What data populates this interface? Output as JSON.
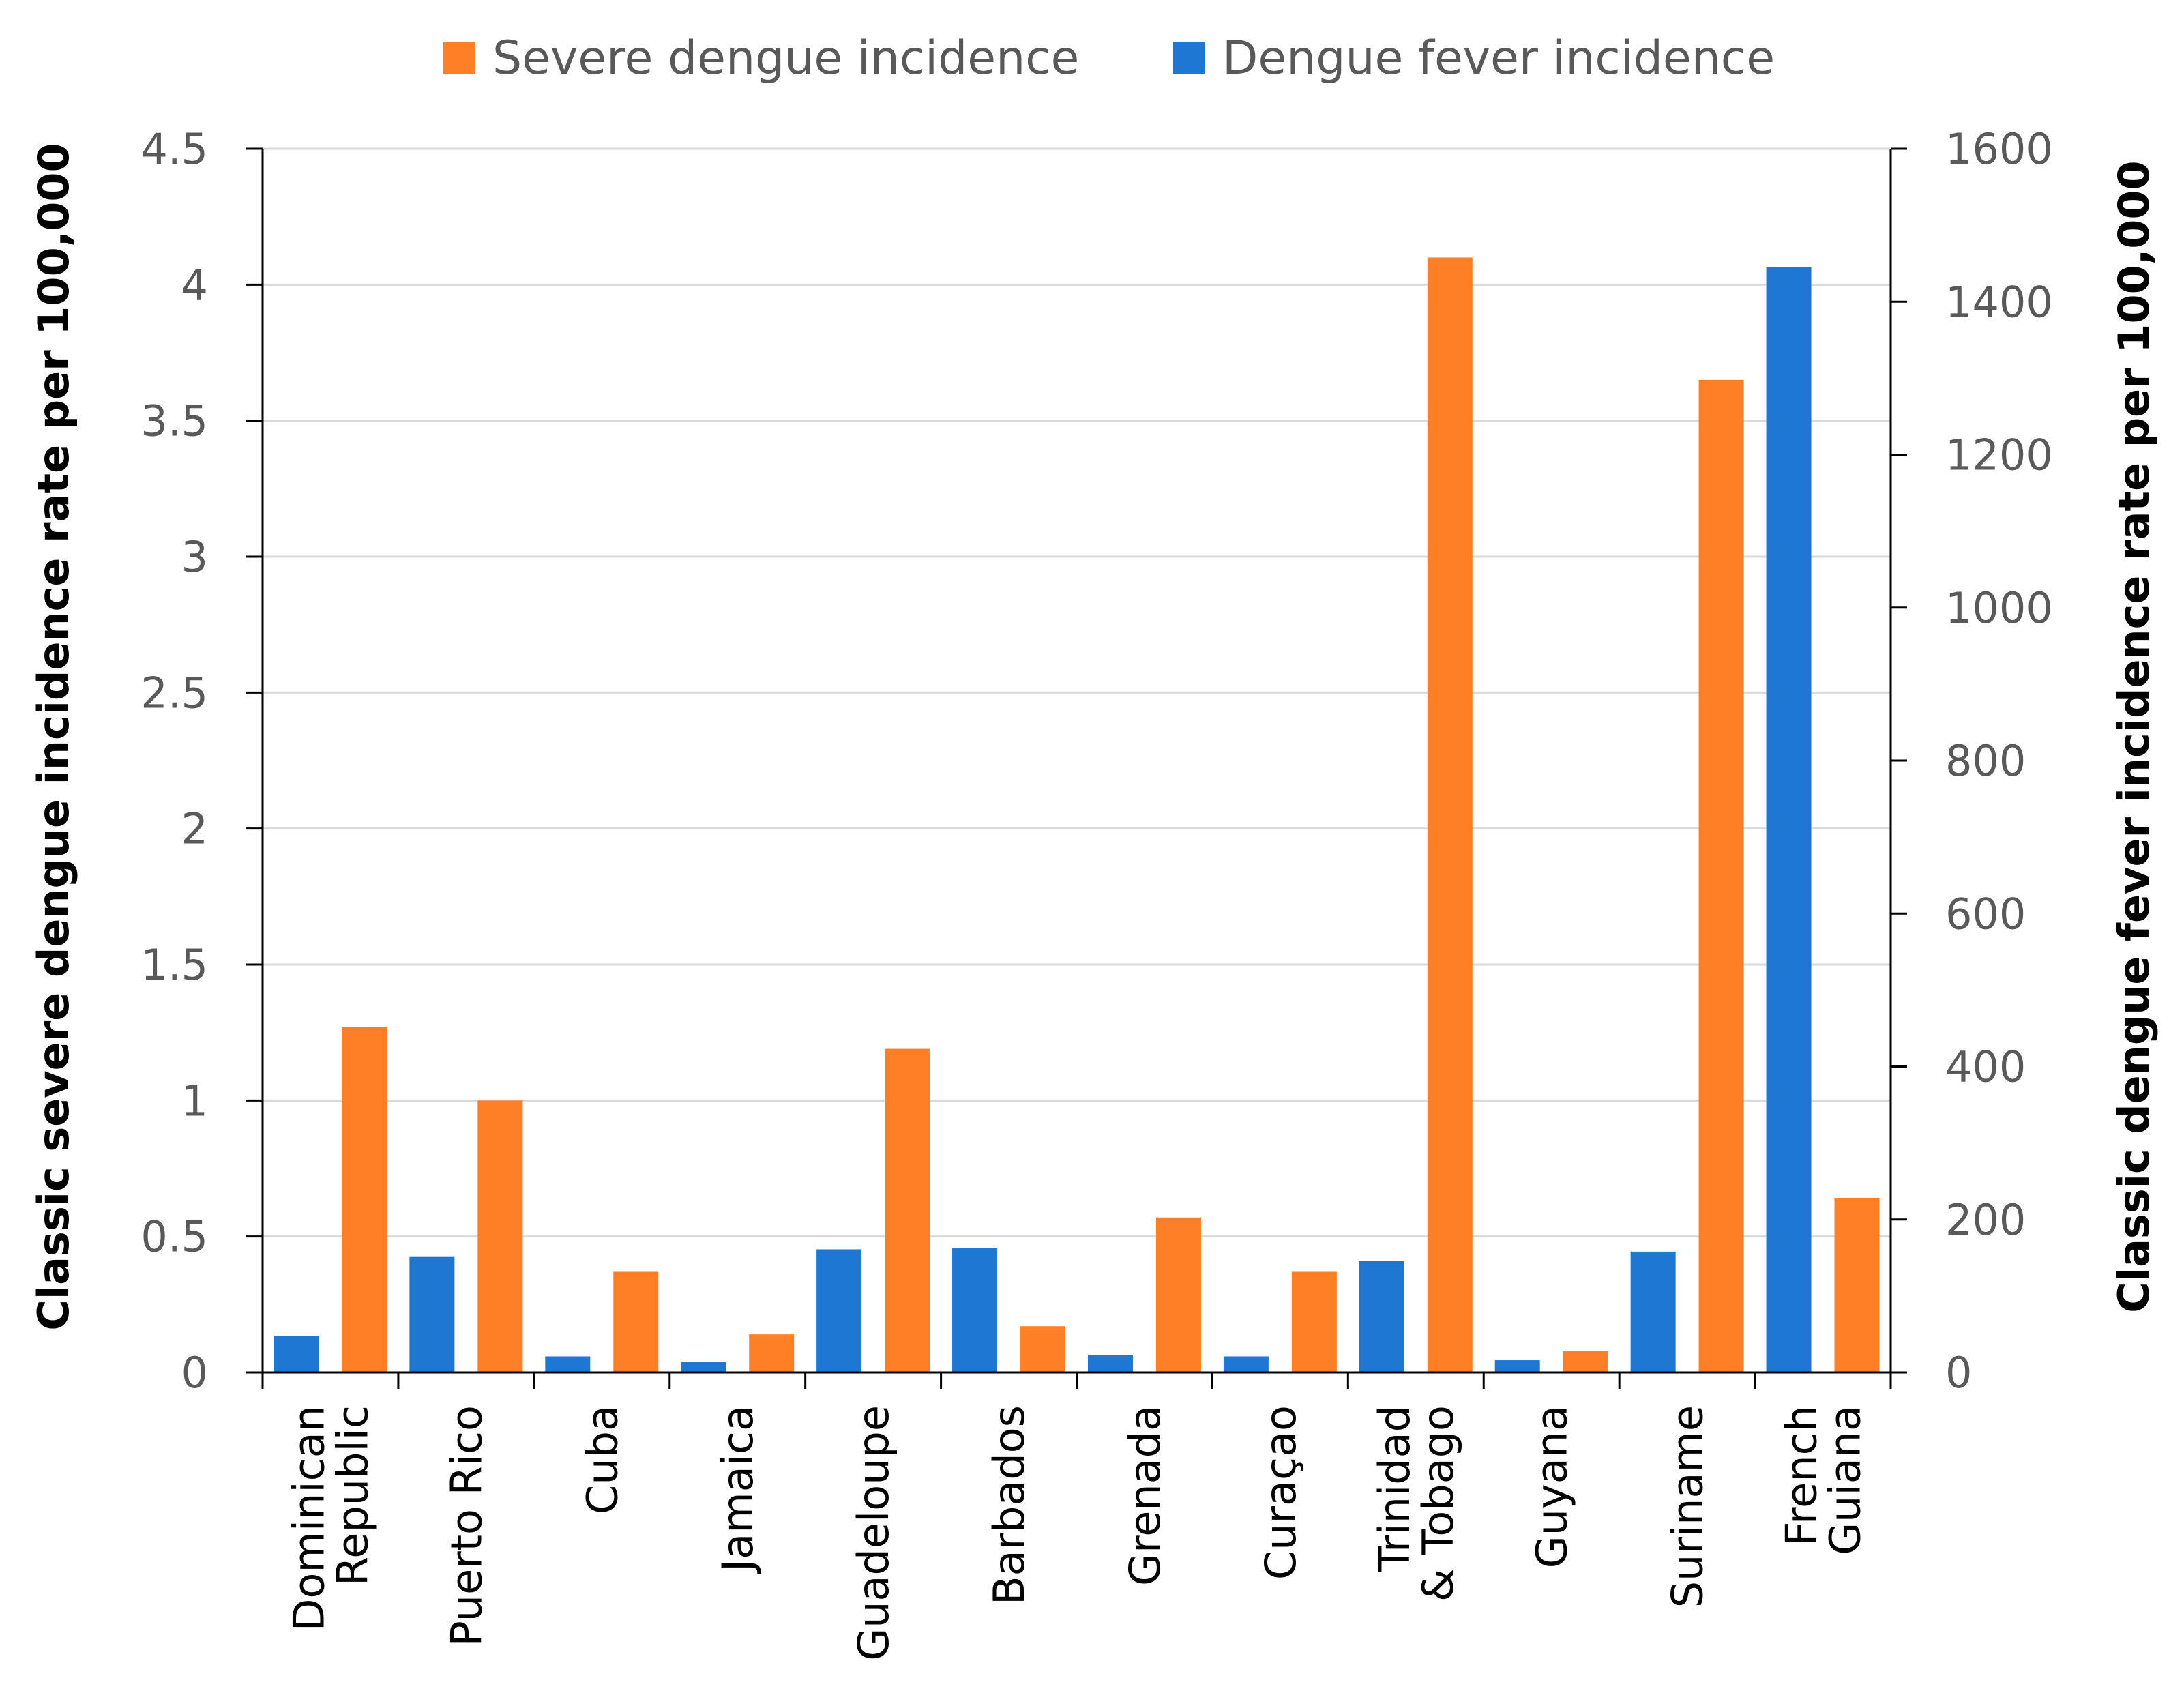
{
  "chart_data": {
    "type": "bar",
    "title": "",
    "categories": [
      [
        "Dominican",
        "Republic"
      ],
      [
        "Puerto Rico"
      ],
      [
        "Cuba"
      ],
      [
        "Jamaica"
      ],
      [
        "Guadeloupe"
      ],
      [
        "Barbados"
      ],
      [
        "Grenada"
      ],
      [
        "Curaçao"
      ],
      [
        "Trinidad",
        "& Tobago"
      ],
      [
        "Guyana"
      ],
      [
        "Suriname"
      ],
      [
        "French",
        "Guiana"
      ]
    ],
    "series": [
      {
        "name": "Dengue fever incidence",
        "axis": "right",
        "color": "#1f77d4",
        "values": [
          48,
          151,
          21,
          14,
          161,
          163,
          23,
          21,
          146,
          16,
          158,
          1445
        ]
      },
      {
        "name": "Severe dengue incidence",
        "axis": "left",
        "color": "#ff7f27",
        "values": [
          1.27,
          1.0,
          0.37,
          0.14,
          1.19,
          0.17,
          0.57,
          0.37,
          4.1,
          0.08,
          3.65,
          0.64
        ]
      }
    ],
    "legend_order": [
      "Severe dengue incidence",
      "Dengue fever incidence"
    ],
    "legend_position": "top-center",
    "ylabel": "Classic severe dengue incidence rate per 100,000",
    "y2label": "Classic dengue fever incidence rate per 100,000",
    "xlabel": "",
    "ylim": [
      0,
      4.5
    ],
    "yticks": [
      0,
      0.5,
      1,
      1.5,
      2,
      2.5,
      3,
      3.5,
      4,
      4.5
    ],
    "ytick_labels": [
      "0",
      "0.5",
      "1",
      "1.5",
      "2",
      "2.5",
      "3",
      "3.5",
      "4",
      "4.5"
    ],
    "y2lim": [
      0,
      1600
    ],
    "y2ticks": [
      0,
      200,
      400,
      600,
      800,
      1000,
      1200,
      1400,
      1600
    ],
    "y2tick_labels": [
      "0",
      "200",
      "400",
      "600",
      "800",
      "1000",
      "1200",
      "1400",
      "1600"
    ],
    "grid": true
  }
}
